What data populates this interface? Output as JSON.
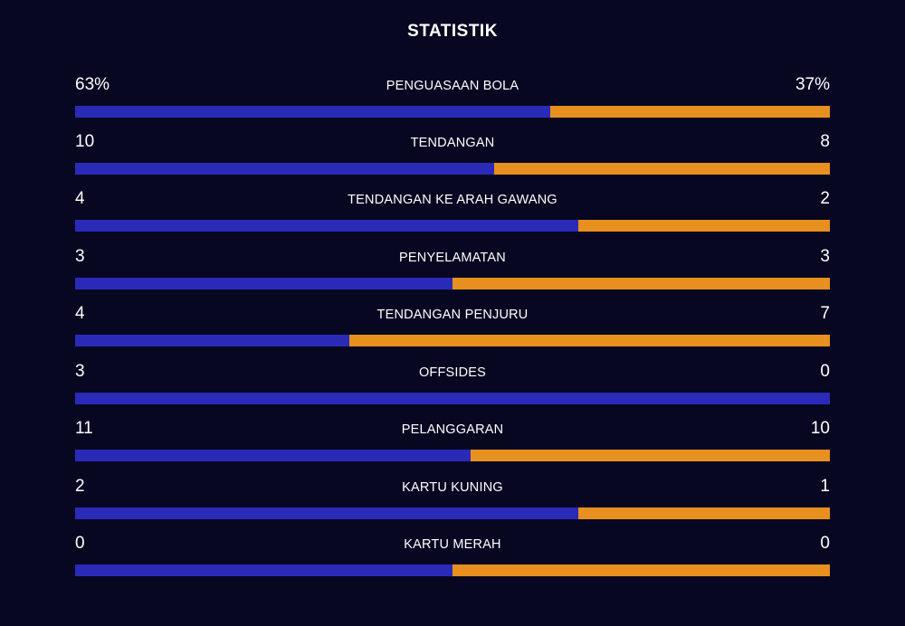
{
  "title": "STATISTIK",
  "colors": {
    "background": "#070722",
    "home": "#2a2ab8",
    "away": "#e8901f"
  },
  "stats": [
    {
      "label": "PENGUASAAN BOLA",
      "home": "63%",
      "away": "37%",
      "home_value": 63,
      "away_value": 37
    },
    {
      "label": "TENDANGAN",
      "home": "10",
      "away": "8",
      "home_value": 10,
      "away_value": 8
    },
    {
      "label": "TENDANGAN KE ARAH GAWANG",
      "home": "4",
      "away": "2",
      "home_value": 4,
      "away_value": 2
    },
    {
      "label": "PENYELAMATAN",
      "home": "3",
      "away": "3",
      "home_value": 3,
      "away_value": 3
    },
    {
      "label": "TENDANGAN PENJURU",
      "home": "4",
      "away": "7",
      "home_value": 4,
      "away_value": 7
    },
    {
      "label": "OFFSIDES",
      "home": "3",
      "away": "0",
      "home_value": 3,
      "away_value": 0
    },
    {
      "label": "PELANGGARAN",
      "home": "11",
      "away": "10",
      "home_value": 11,
      "away_value": 10
    },
    {
      "label": "KARTU KUNING",
      "home": "2",
      "away": "1",
      "home_value": 2,
      "away_value": 1
    },
    {
      "label": "KARTU MERAH",
      "home": "0",
      "away": "0",
      "home_value": 0,
      "away_value": 0
    }
  ]
}
